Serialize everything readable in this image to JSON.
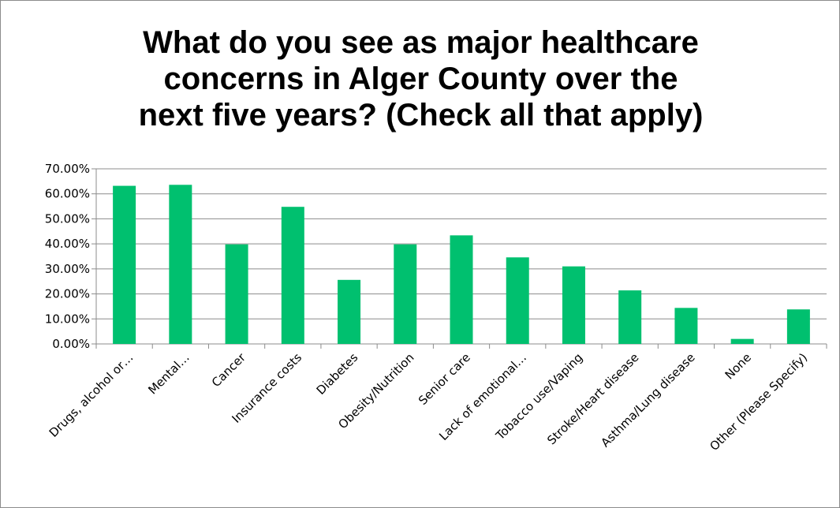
{
  "chart_data": {
    "type": "bar",
    "title_lines": [
      "What do you see as major healthcare",
      "concerns in Alger County over the",
      "next five years? (Check all that apply)"
    ],
    "categories": [
      "Drugs, alcohol or…",
      "Mental…",
      "Cancer",
      "Insurance costs",
      "Diabetes",
      "Obesity/Nutrition",
      "Senior care",
      "Lack of emotional…",
      "Tobacco use/Vaping",
      "Stroke/Heart disease",
      "Asthma/Lung disease",
      "None",
      "Other (Please Specify)"
    ],
    "values": [
      63.2,
      63.6,
      39.8,
      54.8,
      25.6,
      39.8,
      43.4,
      34.6,
      31.0,
      21.4,
      14.4,
      2.0,
      13.8
    ],
    "ylim": [
      0,
      70
    ],
    "yticks": [
      0,
      10,
      20,
      30,
      40,
      50,
      60,
      70
    ],
    "ytick_labels": [
      "0.00%",
      "10.00%",
      "20.00%",
      "30.00%",
      "40.00%",
      "50.00%",
      "60.00%",
      "70.00%"
    ],
    "bar_color": "#00c06f",
    "grid": true,
    "legend": "none"
  }
}
